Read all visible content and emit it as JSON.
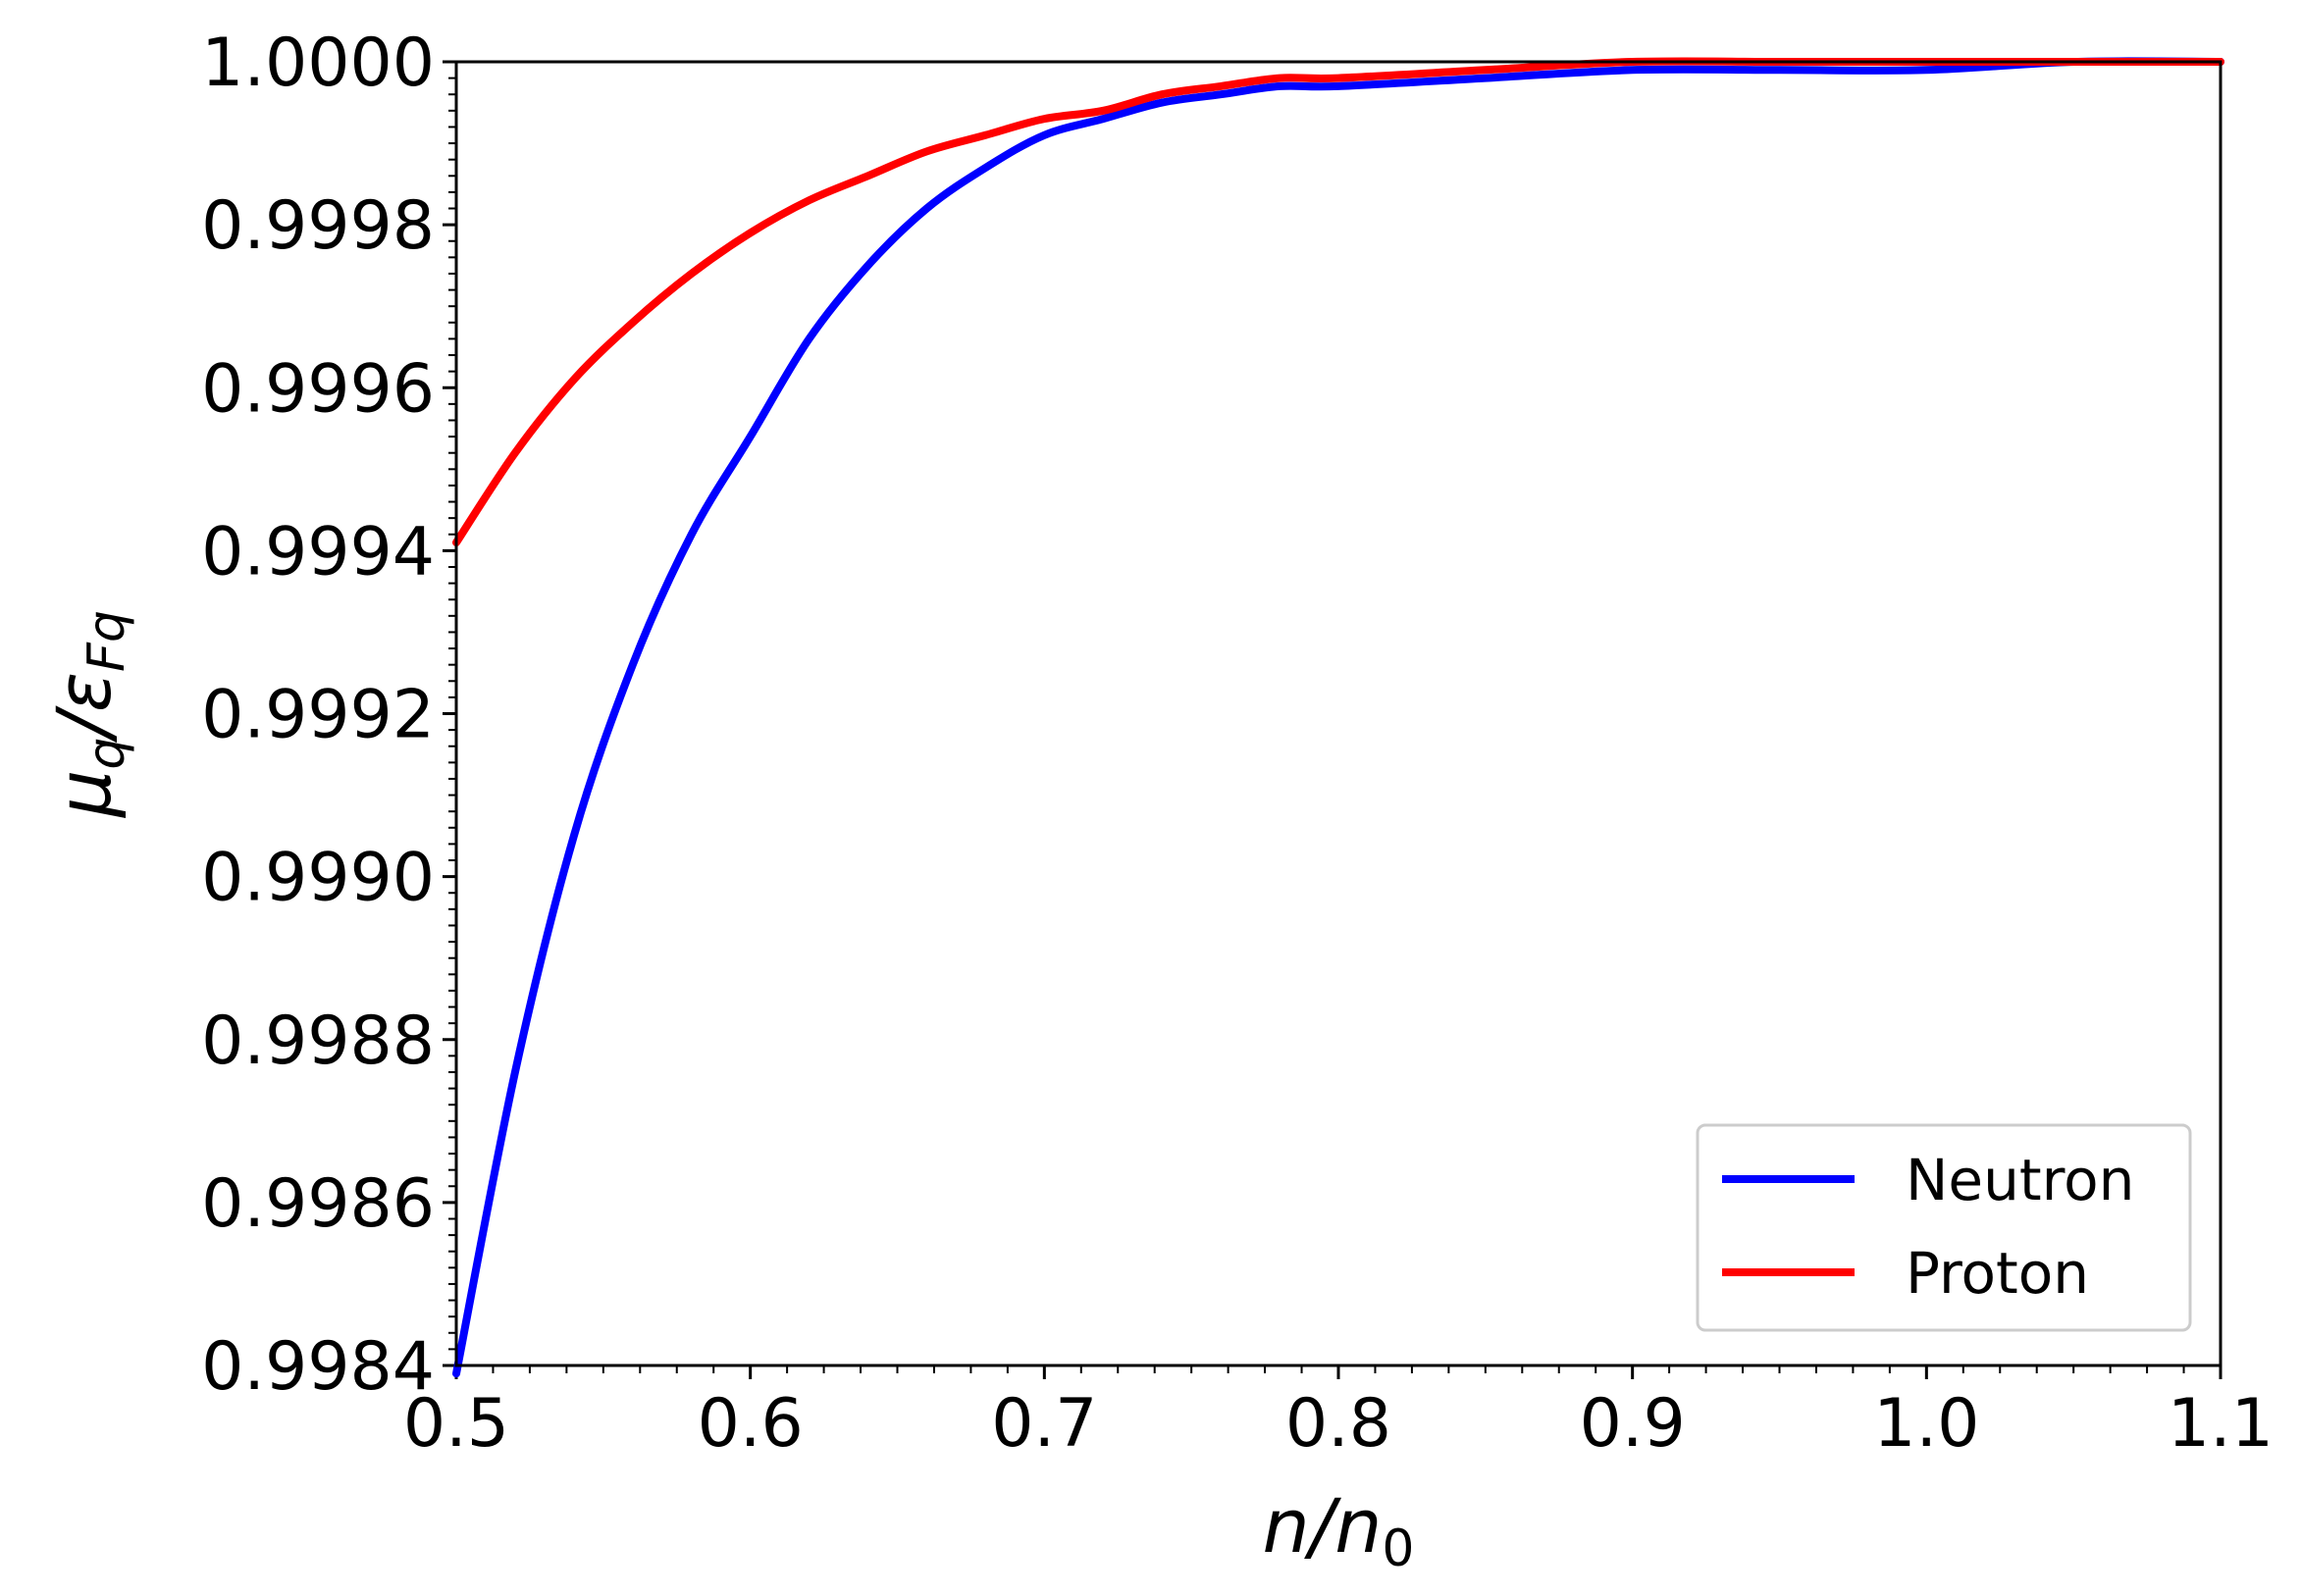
{
  "chart_data": {
    "type": "line",
    "xlabel": "n/n0",
    "ylabel": "μq/εFq",
    "xlim": [
      0.5,
      1.1
    ],
    "ylim": [
      0.9984,
      1.0
    ],
    "x_ticks": [
      "0.5",
      "0.6",
      "0.7",
      "0.8",
      "0.9",
      "1.0",
      "1.1"
    ],
    "y_ticks": [
      "0.9984",
      "0.9986",
      "0.9988",
      "0.9990",
      "0.9992",
      "0.9994",
      "0.9996",
      "0.9998",
      "1.0000"
    ],
    "grid": false,
    "legend_position": "bottom-right",
    "series": [
      {
        "name": "Neutron",
        "color": "#0000ff",
        "x": [
          0.5,
          0.52,
          0.54,
          0.56,
          0.58,
          0.6,
          0.62,
          0.64,
          0.66,
          0.68,
          0.7,
          0.72,
          0.74,
          0.76,
          0.78,
          0.8,
          0.85,
          0.9,
          0.95,
          1.0,
          1.05,
          1.1
        ],
        "y": [
          0.99839,
          0.99876,
          0.99905,
          0.99926,
          0.99942,
          0.99954,
          0.99966,
          0.99975,
          0.99982,
          0.99987,
          0.99991,
          0.99993,
          0.99995,
          0.99996,
          0.99997,
          0.99997,
          0.99998,
          0.99999,
          0.99999,
          0.99999,
          1.0,
          1.0
        ]
      },
      {
        "name": "Proton",
        "color": "#ff0000",
        "x": [
          0.5,
          0.52,
          0.54,
          0.56,
          0.58,
          0.6,
          0.62,
          0.64,
          0.66,
          0.68,
          0.7,
          0.72,
          0.74,
          0.76,
          0.78,
          0.8,
          0.85,
          0.9,
          0.95,
          1.0,
          1.05,
          1.1
        ],
        "y": [
          0.99941,
          0.99952,
          0.99961,
          0.99968,
          0.99974,
          0.99979,
          0.99983,
          0.99986,
          0.99989,
          0.99991,
          0.99993,
          0.99994,
          0.99996,
          0.99997,
          0.99998,
          0.99998,
          0.99999,
          1.0,
          1.0,
          1.0,
          1.0,
          1.0
        ]
      }
    ]
  }
}
